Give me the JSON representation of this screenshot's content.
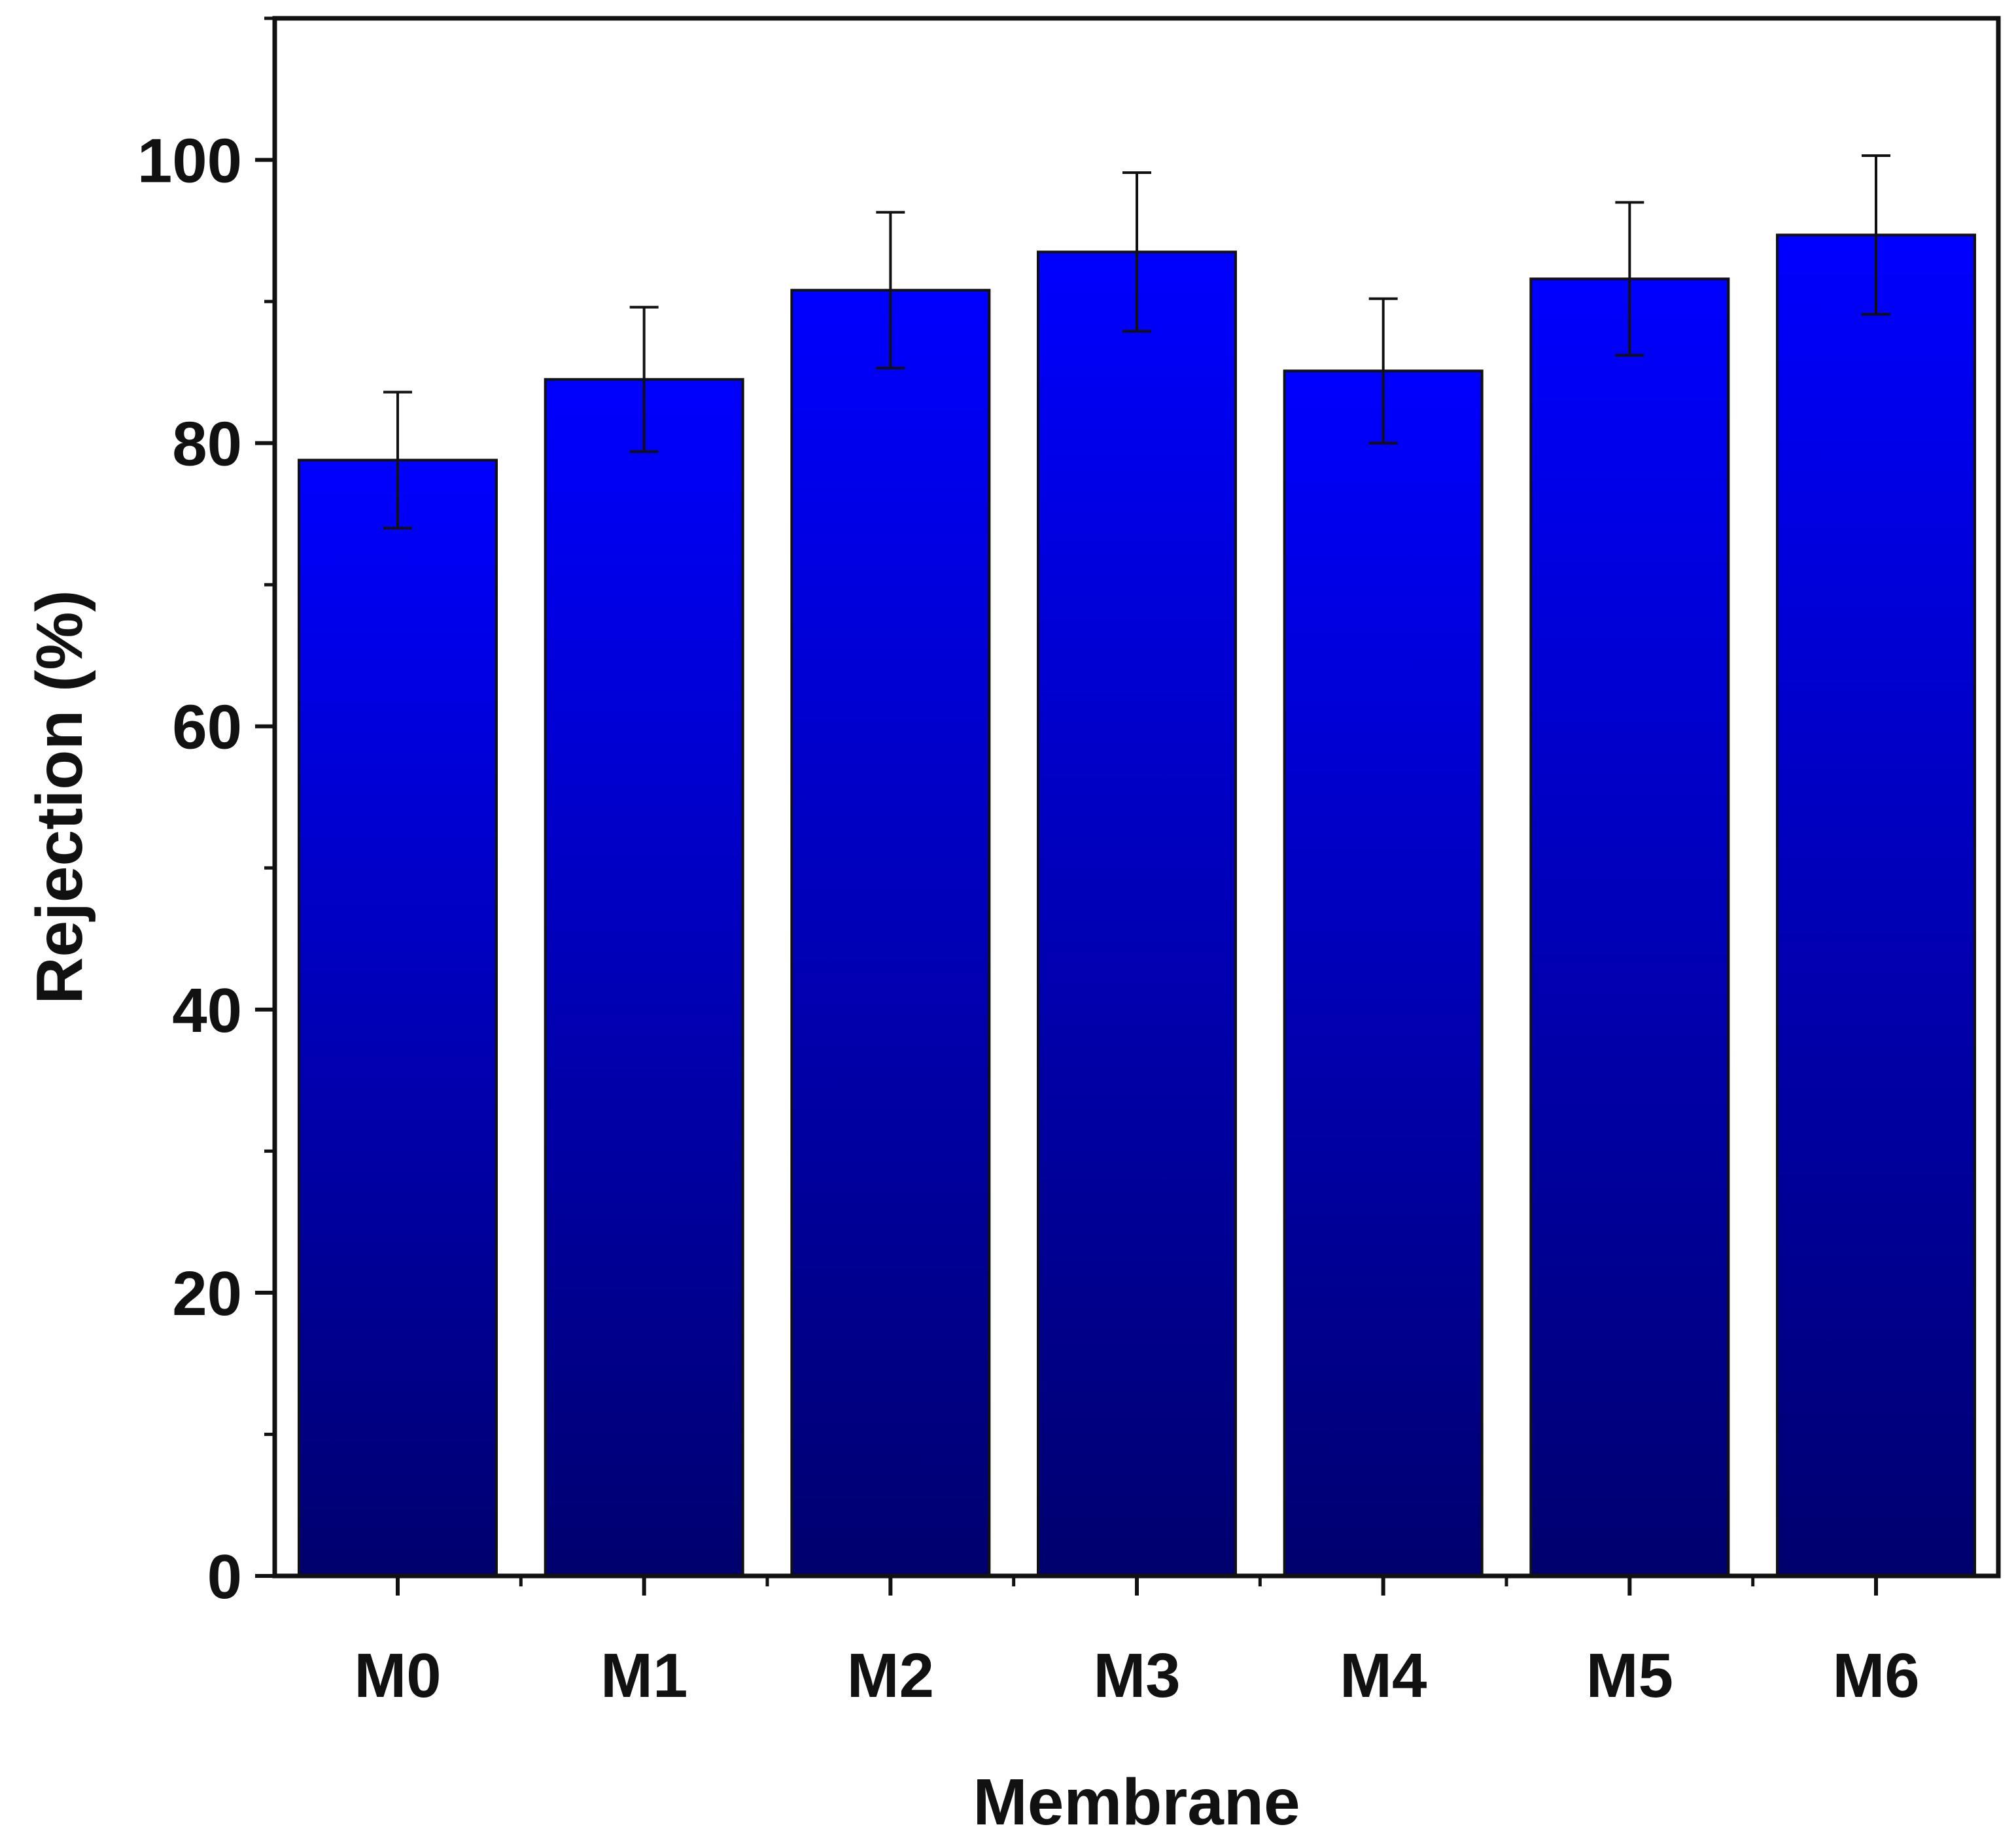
{
  "chart_data": {
    "type": "bar",
    "title": "",
    "xlabel": "Membrane",
    "ylabel": "Rejection (%)",
    "categories": [
      "M0",
      "M1",
      "M2",
      "M3",
      "M4",
      "M5",
      "M6"
    ],
    "values": [
      78.8,
      84.5,
      90.8,
      93.5,
      85.1,
      91.6,
      94.7
    ],
    "errors": [
      4.8,
      5.1,
      5.5,
      5.6,
      5.1,
      5.4,
      5.6
    ],
    "ylim": [
      0,
      110
    ],
    "yticks": [
      0,
      20,
      40,
      60,
      80,
      100
    ],
    "yminor_step": 10,
    "grid": false,
    "legend": "none",
    "colors": {
      "bar_top": "#0000ff",
      "bar_bottom": "#00006e",
      "axis": "#111111"
    }
  }
}
